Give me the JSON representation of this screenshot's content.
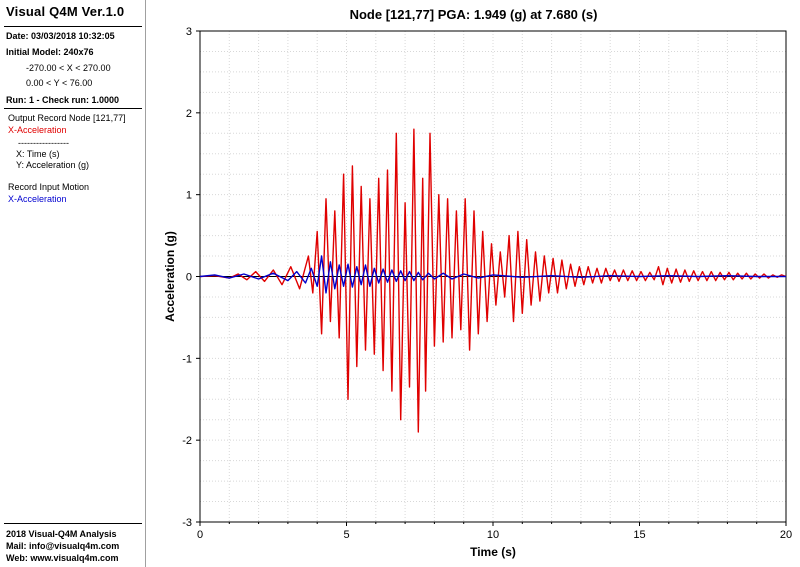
{
  "sidebar": {
    "app_title": "Visual Q4M Ver.1.0",
    "date": "Date: 03/03/2018 10:32:05",
    "initial_model": "Initial Model: 240x76",
    "x_range": "-270.00 < X < 270.00",
    "y_range": "0.00 < Y < 76.00",
    "run": "Run: 1 - Check run: 1.0000",
    "output_record": "Output Record Node [121,77]",
    "output_series": "X-Acceleration",
    "separator": "-----------------",
    "x_axis_desc": "X: Time (s)",
    "y_axis_desc": "Y: Acceleration (g)",
    "input_record": "Record Input Motion",
    "input_series": "X-Acceleration",
    "footer_company": "2018 Visual-Q4M Analysis",
    "footer_mail": "Mail: info@visualq4m.com",
    "footer_web": "Web: www.visualq4m.com"
  },
  "chart_data": {
    "type": "line",
    "title": "Node [121,77]  PGA: 1.949 (g) at 7.680 (s)",
    "xlabel": "Time (s)",
    "ylabel": "Acceleration (g)",
    "xlim": [
      0,
      20
    ],
    "ylim": [
      -3,
      3
    ],
    "xticks": [
      0,
      5,
      10,
      15,
      20
    ],
    "yticks": [
      -3,
      -2,
      -1,
      0,
      1,
      2,
      3
    ],
    "grid": true,
    "legend": "none",
    "colors": {
      "output": "#e00000",
      "input": "#0000cc",
      "grid": "#d8d8d8"
    },
    "series": [
      {
        "key": "output",
        "x": [
          0,
          0.5,
          1.0,
          1.3,
          1.6,
          1.9,
          2.2,
          2.5,
          2.8,
          3.1,
          3.4,
          3.7,
          3.85,
          4.0,
          4.15,
          4.3,
          4.45,
          4.6,
          4.75,
          4.9,
          5.05,
          5.2,
          5.35,
          5.5,
          5.65,
          5.8,
          5.95,
          6.1,
          6.25,
          6.4,
          6.55,
          6.7,
          6.85,
          7.0,
          7.15,
          7.3,
          7.45,
          7.6,
          7.7,
          7.85,
          8.0,
          8.15,
          8.3,
          8.45,
          8.6,
          8.75,
          8.9,
          9.05,
          9.2,
          9.35,
          9.5,
          9.65,
          9.8,
          9.95,
          10.1,
          10.25,
          10.4,
          10.55,
          10.7,
          10.85,
          11.0,
          11.15,
          11.3,
          11.45,
          11.6,
          11.75,
          11.9,
          12.05,
          12.2,
          12.35,
          12.5,
          12.65,
          12.8,
          12.95,
          13.1,
          13.25,
          13.4,
          13.55,
          13.7,
          13.85,
          14.0,
          14.15,
          14.3,
          14.45,
          14.6,
          14.75,
          14.9,
          15.05,
          15.2,
          15.35,
          15.5,
          15.65,
          15.8,
          15.95,
          16.1,
          16.25,
          16.4,
          16.55,
          16.7,
          16.85,
          17.0,
          17.15,
          17.3,
          17.45,
          17.6,
          17.75,
          17.9,
          18.05,
          18.2,
          18.35,
          18.5,
          18.65,
          18.8,
          18.95,
          19.1,
          19.25,
          19.4,
          19.55,
          19.7,
          19.85,
          20.0
        ],
        "y": [
          0,
          0.01,
          -0.02,
          0.03,
          -0.04,
          0.06,
          -0.06,
          0.08,
          -0.1,
          0.12,
          -0.15,
          0.25,
          -0.2,
          0.55,
          -0.7,
          0.95,
          -0.55,
          0.8,
          -0.75,
          1.25,
          -1.5,
          1.35,
          -1.1,
          1.1,
          -0.9,
          0.95,
          -0.95,
          1.2,
          -1.15,
          1.3,
          -1.4,
          1.75,
          -1.75,
          0.9,
          -1.35,
          1.8,
          -1.9,
          1.2,
          -1.4,
          1.75,
          -0.85,
          1.0,
          -0.8,
          0.95,
          -0.75,
          0.8,
          -0.65,
          0.95,
          -0.9,
          0.8,
          -0.7,
          0.55,
          -0.55,
          0.4,
          -0.35,
          0.3,
          -0.25,
          0.5,
          -0.55,
          0.55,
          -0.45,
          0.45,
          -0.35,
          0.3,
          -0.3,
          0.25,
          -0.2,
          0.22,
          -0.2,
          0.2,
          -0.15,
          0.15,
          -0.12,
          0.12,
          -0.1,
          0.12,
          -0.08,
          0.1,
          -0.08,
          0.1,
          -0.05,
          0.08,
          -0.06,
          0.08,
          -0.05,
          0.07,
          -0.05,
          0.06,
          -0.05,
          0.05,
          -0.04,
          0.12,
          -0.1,
          0.1,
          -0.08,
          0.09,
          -0.07,
          0.08,
          -0.06,
          0.07,
          -0.05,
          0.06,
          -0.05,
          0.06,
          -0.05,
          0.05,
          -0.04,
          0.05,
          -0.04,
          0.04,
          -0.03,
          0.04,
          -0.03,
          0.03,
          -0.02,
          0.03,
          -0.02,
          0.02,
          -0.01,
          0.02,
          0.0
        ]
      },
      {
        "key": "input",
        "x": [
          0,
          0.5,
          1.0,
          1.5,
          2.0,
          2.5,
          3.0,
          3.3,
          3.6,
          3.8,
          4.0,
          4.15,
          4.3,
          4.45,
          4.6,
          4.75,
          4.9,
          5.05,
          5.2,
          5.35,
          5.5,
          5.65,
          5.8,
          5.95,
          6.1,
          6.25,
          6.4,
          6.55,
          6.7,
          6.85,
          7.0,
          7.15,
          7.3,
          7.45,
          7.6,
          7.8,
          8.0,
          8.3,
          8.6,
          9.0,
          9.5,
          10.0,
          11.0,
          12.0,
          13.0,
          14.0,
          15.0,
          16.0,
          17.0,
          18.0,
          19.0,
          20.0
        ],
        "y": [
          0,
          0.02,
          -0.02,
          0.03,
          -0.03,
          0.04,
          -0.05,
          0.06,
          -0.08,
          0.1,
          -0.12,
          0.25,
          -0.2,
          0.18,
          -0.15,
          0.14,
          -0.12,
          0.15,
          -0.13,
          0.12,
          -0.1,
          0.14,
          -0.12,
          0.1,
          -0.08,
          0.09,
          -0.07,
          0.08,
          -0.06,
          0.07,
          -0.05,
          0.06,
          -0.05,
          0.05,
          -0.04,
          0.04,
          -0.03,
          0.04,
          -0.03,
          0.03,
          -0.02,
          0.02,
          -0.01,
          0.01,
          -0.01,
          0.01,
          0.0,
          0.01,
          0.0,
          0.01,
          0.0,
          0.0
        ]
      }
    ]
  }
}
